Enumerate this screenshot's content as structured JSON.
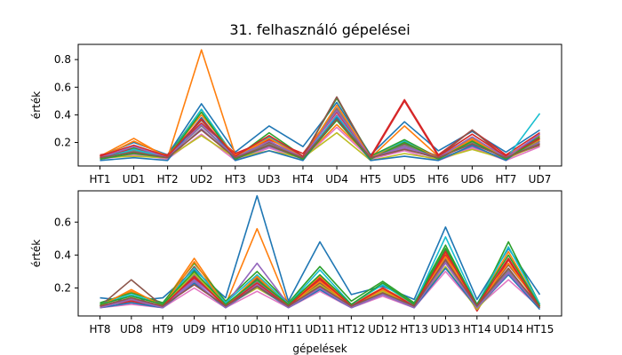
{
  "chart_data": [
    {
      "type": "line",
      "title": "31. felhasználó gépelései",
      "xlabel": "",
      "ylabel": "érték",
      "categories": [
        "HT1",
        "UD1",
        "HT2",
        "UD2",
        "HT3",
        "UD3",
        "HT4",
        "UD4",
        "HT5",
        "UD5",
        "HT6",
        "UD6",
        "HT7",
        "UD7"
      ],
      "yticks": [
        0.2,
        0.4,
        0.6,
        0.8
      ],
      "ylim": [
        0.03,
        0.91
      ],
      "grid": false,
      "series": [
        {
          "color": "#1f77b4",
          "values": [
            0.1,
            0.2,
            0.11,
            0.48,
            0.13,
            0.32,
            0.17,
            0.49,
            0.11,
            0.35,
            0.14,
            0.28,
            0.13,
            0.29
          ]
        },
        {
          "color": "#ff7f0e",
          "values": [
            0.1,
            0.23,
            0.09,
            0.87,
            0.11,
            0.21,
            0.08,
            0.33,
            0.09,
            0.32,
            0.1,
            0.23,
            0.1,
            0.25
          ]
        },
        {
          "color": "#2ca02c",
          "values": [
            0.09,
            0.16,
            0.1,
            0.44,
            0.09,
            0.27,
            0.1,
            0.52,
            0.1,
            0.22,
            0.09,
            0.24,
            0.09,
            0.24
          ]
        },
        {
          "color": "#d62728",
          "values": [
            0.11,
            0.15,
            0.11,
            0.34,
            0.12,
            0.22,
            0.12,
            0.44,
            0.1,
            0.51,
            0.11,
            0.29,
            0.11,
            0.27
          ]
        },
        {
          "color": "#9467bd",
          "values": [
            0.08,
            0.12,
            0.08,
            0.3,
            0.08,
            0.17,
            0.08,
            0.4,
            0.08,
            0.16,
            0.08,
            0.17,
            0.08,
            0.2
          ]
        },
        {
          "color": "#8c564b",
          "values": [
            0.1,
            0.13,
            0.1,
            0.36,
            0.1,
            0.2,
            0.1,
            0.53,
            0.09,
            0.19,
            0.1,
            0.29,
            0.09,
            0.18
          ]
        },
        {
          "color": "#e377c2",
          "values": [
            0.08,
            0.11,
            0.08,
            0.26,
            0.07,
            0.16,
            0.08,
            0.31,
            0.08,
            0.14,
            0.07,
            0.16,
            0.07,
            0.17
          ]
        },
        {
          "color": "#7f7f7f",
          "values": [
            0.09,
            0.14,
            0.09,
            0.32,
            0.09,
            0.19,
            0.09,
            0.45,
            0.09,
            0.18,
            0.09,
            0.2,
            0.09,
            0.21
          ]
        },
        {
          "color": "#bcbd22",
          "values": [
            0.09,
            0.1,
            0.09,
            0.25,
            0.09,
            0.14,
            0.09,
            0.27,
            0.07,
            0.12,
            0.08,
            0.15,
            0.08,
            0.19
          ]
        },
        {
          "color": "#17becf",
          "values": [
            0.08,
            0.15,
            0.09,
            0.44,
            0.09,
            0.24,
            0.09,
            0.39,
            0.09,
            0.21,
            0.08,
            0.21,
            0.08,
            0.41
          ]
        },
        {
          "color": "#1f77b4",
          "values": [
            0.07,
            0.09,
            0.07,
            0.38,
            0.07,
            0.14,
            0.07,
            0.38,
            0.07,
            0.1,
            0.07,
            0.18,
            0.07,
            0.26
          ]
        },
        {
          "color": "#ff7f0e",
          "values": [
            0.09,
            0.21,
            0.1,
            0.4,
            0.1,
            0.23,
            0.09,
            0.47,
            0.09,
            0.2,
            0.09,
            0.22,
            0.09,
            0.22
          ]
        },
        {
          "color": "#2ca02c",
          "values": [
            0.08,
            0.12,
            0.09,
            0.42,
            0.08,
            0.18,
            0.08,
            0.36,
            0.08,
            0.2,
            0.08,
            0.21,
            0.08,
            0.23
          ]
        },
        {
          "color": "#d62728",
          "values": [
            0.1,
            0.18,
            0.1,
            0.37,
            0.1,
            0.25,
            0.1,
            0.42,
            0.09,
            0.5,
            0.1,
            0.26,
            0.1,
            0.23
          ]
        },
        {
          "color": "#9467bd",
          "values": [
            0.09,
            0.17,
            0.09,
            0.33,
            0.09,
            0.21,
            0.09,
            0.43,
            0.09,
            0.17,
            0.09,
            0.24,
            0.09,
            0.26
          ]
        },
        {
          "color": "#8c564b",
          "values": [
            0.09,
            0.13,
            0.09,
            0.29,
            0.09,
            0.18,
            0.09,
            0.37,
            0.09,
            0.15,
            0.09,
            0.19,
            0.09,
            0.19
          ]
        }
      ]
    },
    {
      "type": "line",
      "title": "",
      "xlabel": "gépelések",
      "ylabel": "érték",
      "categories": [
        "HT8",
        "UD8",
        "HT9",
        "UD9",
        "HT10",
        "UD10",
        "HT11",
        "UD11",
        "HT12",
        "UD12",
        "HT13",
        "UD13",
        "HT14",
        "UD14",
        "HT15"
      ],
      "yticks": [
        0.2,
        0.4,
        0.6
      ],
      "ylim": [
        0.03,
        0.79
      ],
      "grid": false,
      "series": [
        {
          "color": "#1f77b4",
          "values": [
            0.14,
            0.12,
            0.14,
            0.31,
            0.14,
            0.76,
            0.12,
            0.48,
            0.16,
            0.21,
            0.13,
            0.57,
            0.13,
            0.44,
            0.16
          ]
        },
        {
          "color": "#ff7f0e",
          "values": [
            0.1,
            0.18,
            0.1,
            0.38,
            0.1,
            0.56,
            0.1,
            0.27,
            0.1,
            0.2,
            0.1,
            0.41,
            0.1,
            0.42,
            0.09
          ]
        },
        {
          "color": "#2ca02c",
          "values": [
            0.11,
            0.17,
            0.11,
            0.35,
            0.12,
            0.3,
            0.11,
            0.33,
            0.12,
            0.24,
            0.11,
            0.46,
            0.09,
            0.48,
            0.1
          ]
        },
        {
          "color": "#d62728",
          "values": [
            0.09,
            0.13,
            0.09,
            0.26,
            0.09,
            0.22,
            0.09,
            0.25,
            0.09,
            0.19,
            0.09,
            0.4,
            0.06,
            0.37,
            0.08
          ]
        },
        {
          "color": "#9467bd",
          "values": [
            0.1,
            0.11,
            0.09,
            0.25,
            0.1,
            0.35,
            0.1,
            0.2,
            0.1,
            0.17,
            0.1,
            0.36,
            0.09,
            0.3,
            0.09
          ]
        },
        {
          "color": "#8c564b",
          "values": [
            0.09,
            0.25,
            0.09,
            0.33,
            0.09,
            0.26,
            0.09,
            0.23,
            0.09,
            0.18,
            0.09,
            0.43,
            0.09,
            0.34,
            0.1
          ]
        },
        {
          "color": "#e377c2",
          "values": [
            0.08,
            0.1,
            0.08,
            0.2,
            0.08,
            0.18,
            0.08,
            0.18,
            0.08,
            0.15,
            0.08,
            0.3,
            0.08,
            0.25,
            0.08
          ]
        },
        {
          "color": "#7f7f7f",
          "values": [
            0.09,
            0.14,
            0.09,
            0.28,
            0.09,
            0.24,
            0.09,
            0.21,
            0.09,
            0.17,
            0.09,
            0.38,
            0.09,
            0.31,
            0.09
          ]
        },
        {
          "color": "#bcbd22",
          "values": [
            0.09,
            0.12,
            0.09,
            0.29,
            0.09,
            0.2,
            0.09,
            0.22,
            0.09,
            0.18,
            0.09,
            0.33,
            0.07,
            0.29,
            0.08
          ]
        },
        {
          "color": "#17becf",
          "values": [
            0.1,
            0.16,
            0.1,
            0.32,
            0.11,
            0.28,
            0.1,
            0.31,
            0.1,
            0.22,
            0.1,
            0.51,
            0.1,
            0.45,
            0.1
          ]
        },
        {
          "color": "#1f77b4",
          "values": [
            0.08,
            0.11,
            0.08,
            0.23,
            0.08,
            0.21,
            0.08,
            0.19,
            0.08,
            0.16,
            0.08,
            0.32,
            0.08,
            0.28,
            0.07
          ]
        },
        {
          "color": "#ff7f0e",
          "values": [
            0.09,
            0.19,
            0.09,
            0.36,
            0.09,
            0.27,
            0.09,
            0.24,
            0.09,
            0.19,
            0.09,
            0.39,
            0.09,
            0.35,
            0.09
          ]
        },
        {
          "color": "#2ca02c",
          "values": [
            0.1,
            0.15,
            0.1,
            0.3,
            0.1,
            0.25,
            0.1,
            0.28,
            0.1,
            0.23,
            0.1,
            0.44,
            0.1,
            0.4,
            0.09
          ]
        },
        {
          "color": "#d62728",
          "values": [
            0.09,
            0.12,
            0.09,
            0.27,
            0.09,
            0.23,
            0.09,
            0.26,
            0.09,
            0.2,
            0.09,
            0.42,
            0.09,
            0.38,
            0.08
          ]
        },
        {
          "color": "#9467bd",
          "values": [
            0.08,
            0.13,
            0.08,
            0.24,
            0.08,
            0.22,
            0.08,
            0.2,
            0.08,
            0.16,
            0.08,
            0.35,
            0.08,
            0.29,
            0.08
          ]
        },
        {
          "color": "#8c564b",
          "values": [
            0.09,
            0.14,
            0.09,
            0.22,
            0.09,
            0.21,
            0.09,
            0.21,
            0.09,
            0.17,
            0.09,
            0.37,
            0.09,
            0.32,
            0.08
          ]
        }
      ]
    }
  ]
}
